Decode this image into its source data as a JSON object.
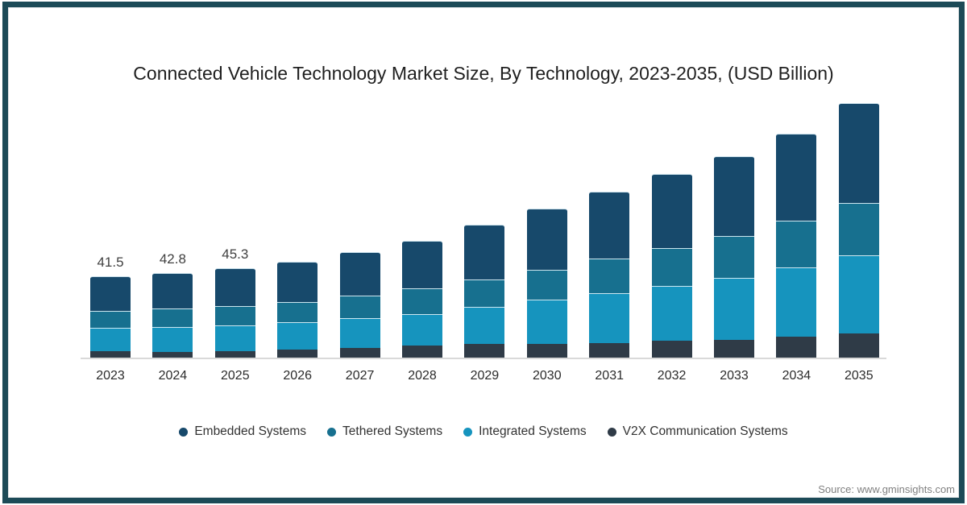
{
  "page": {
    "source": "Source: www.gminsights.com"
  },
  "colors": {
    "frame": "#1c4a57",
    "axis_line": "#d9d9d9",
    "title_text": "#1f1f1f",
    "tick_text": "#2b2b2b",
    "data_label_text": "#404040",
    "source_text": "#808080"
  },
  "chart_data": {
    "type": "bar",
    "stacked": true,
    "title": "Connected Vehicle Technology Market Size, By Technology, 2023-2035, (USD Billion)",
    "unit": "USD Billion",
    "grid": false,
    "legend_position": "bottom",
    "ylim": [
      0,
      140
    ],
    "categories": [
      "2023",
      "2024",
      "2025",
      "2026",
      "2027",
      "2028",
      "2029",
      "2030",
      "2031",
      "2032",
      "2033",
      "2034",
      "2035"
    ],
    "series": [
      {
        "name": "Embedded Systems",
        "color": "#17496b",
        "values": [
          17.5,
          17.8,
          18.8,
          20.0,
          21.7,
          23.9,
          27.6,
          30.8,
          33.6,
          37.3,
          40.1,
          43.7,
          50.2
        ]
      },
      {
        "name": "Tethered Systems",
        "color": "#17708f",
        "values": [
          8.5,
          9.3,
          9.7,
          10.3,
          11.5,
          13.0,
          13.8,
          15.0,
          17.4,
          19.0,
          21.1,
          23.5,
          26.5
        ]
      },
      {
        "name": "Integrated Systems",
        "color": "#1694be",
        "values": [
          11.8,
          12.3,
          13.3,
          13.8,
          15.1,
          15.9,
          18.6,
          22.3,
          25.1,
          27.5,
          31.2,
          34.8,
          39.3
        ]
      },
      {
        "name": "V2X Communication Systems",
        "color": "#2f3b47",
        "values": [
          3.7,
          3.4,
          3.5,
          4.4,
          5.1,
          6.4,
          7.3,
          7.4,
          7.8,
          8.9,
          9.3,
          10.9,
          12.4
        ]
      }
    ],
    "stack_order_bottom_to_top": [
      "V2X Communication Systems",
      "Integrated Systems",
      "Tethered Systems",
      "Embedded Systems"
    ],
    "totals": [
      41.5,
      42.8,
      45.3,
      48.5,
      53.4,
      59.2,
      67.3,
      75.5,
      83.9,
      92.7,
      101.7,
      112.9,
      128.4
    ],
    "data_labels": [
      "41.5",
      "42.8",
      "45.3",
      "",
      "",
      "",
      "",
      "",
      "",
      "",
      "",
      "",
      ""
    ]
  }
}
